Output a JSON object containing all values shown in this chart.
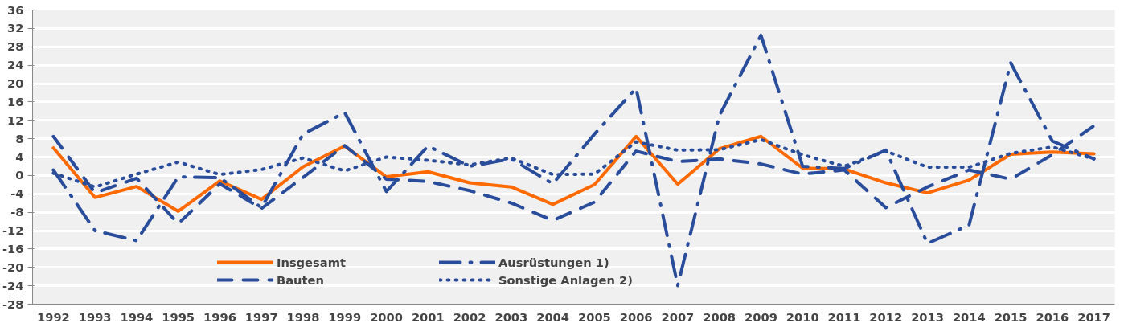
{
  "chart_data": {
    "type": "line",
    "categories": [
      "1992",
      "1993",
      "1994",
      "1995",
      "1996",
      "1997",
      "1998",
      "1999",
      "2000",
      "2001",
      "2002",
      "2003",
      "2004",
      "2005",
      "2006",
      "2007",
      "2008",
      "2009",
      "2010",
      "2011",
      "2012",
      "2013",
      "2014",
      "2015",
      "2016",
      "2017"
    ],
    "series": [
      {
        "name": "Insgesamt",
        "color": "#ff6a00",
        "line_style": "solid",
        "values": [
          6,
          -4.8,
          -2.4,
          -7.8,
          -1.2,
          -5.2,
          1.9,
          6.4,
          -0.3,
          0.8,
          -1.6,
          -2.5,
          -6.3,
          -2,
          8.5,
          -1.9,
          5.8,
          8.5,
          1.6,
          1.4,
          -1.6,
          -3.8,
          -1,
          4.6,
          5.1,
          4.7
        ]
      },
      {
        "name": "Ausrüstungen 1)",
        "color": "#2a4d9b",
        "line_style": "dashdot",
        "values": [
          1.2,
          -12,
          -14.2,
          -0.3,
          -0.5,
          -7,
          9,
          13.7,
          -3.5,
          6.4,
          2,
          3.6,
          -1.8,
          9,
          19,
          -24,
          13,
          30.5,
          2,
          1.5,
          5.5,
          -14.8,
          -10.8,
          24.5,
          7.5,
          3.6
        ]
      },
      {
        "name": "Bauten",
        "color": "#2a4d9b",
        "line_style": "dashed",
        "values": [
          8.5,
          -3.8,
          -0.6,
          -10.5,
          -1.8,
          -7.2,
          -0.4,
          6.5,
          -0.8,
          -1.3,
          -3.3,
          -6,
          -9.8,
          -5.8,
          5.3,
          3,
          3.6,
          2.5,
          0.3,
          1.2,
          -7,
          -2.5,
          1.2,
          -0.8,
          4.5,
          10.8
        ]
      },
      {
        "name": "Sonstige Anlagen 2)",
        "color": "#2a4d9b",
        "line_style": "dotted",
        "values": [
          0.5,
          -2.5,
          0.3,
          2.9,
          0.2,
          1.3,
          3.8,
          1,
          4,
          3.3,
          2.3,
          3.8,
          0.2,
          0.3,
          7.3,
          5.5,
          5.6,
          7.8,
          4.5,
          2,
          5.3,
          1.8,
          1.8,
          4.8,
          6.2,
          3.6
        ]
      }
    ],
    "ylim": [
      -28,
      36
    ],
    "yticks": [
      -28,
      -24,
      -20,
      -16,
      -12,
      -8,
      -4,
      0,
      4,
      8,
      12,
      16,
      20,
      24,
      28,
      32,
      36
    ],
    "grid": "y",
    "legend": "bottom"
  }
}
